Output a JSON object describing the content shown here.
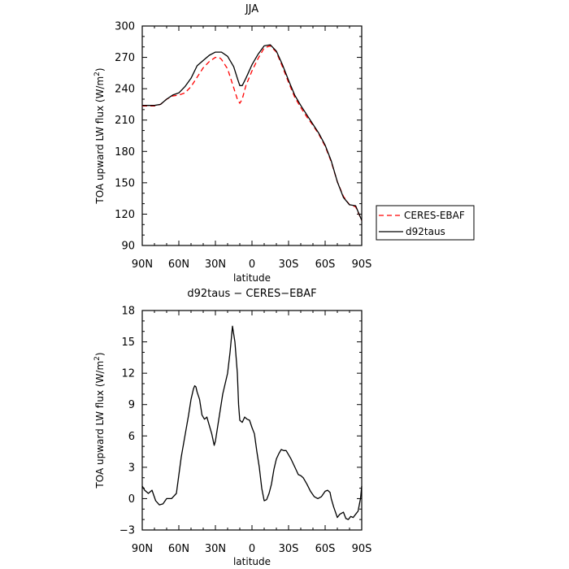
{
  "chart_data": [
    {
      "type": "line",
      "title": "JJA",
      "xlabel": "latitude",
      "ylabel": "TOA upward LW flux (W/m²)",
      "ylim": [
        90,
        300
      ],
      "xlim": [
        90,
        -90
      ],
      "x_ticks": [
        90,
        60,
        30,
        0,
        -30,
        -60,
        -90
      ],
      "x_tick_labels": [
        "90N",
        "60N",
        "30N",
        "0",
        "30S",
        "60S",
        "90S"
      ],
      "y_ticks": [
        90,
        120,
        150,
        180,
        210,
        240,
        270,
        300
      ],
      "y_tick_labels": [
        "90",
        "120",
        "150",
        "180",
        "210",
        "240",
        "270",
        "300"
      ],
      "legend_position": "right",
      "series": [
        {
          "name": "CERES-EBAF",
          "color": "#ff0000",
          "dash": "dashed",
          "x": [
            90,
            85,
            80,
            75,
            70,
            65,
            60,
            55,
            50,
            45,
            40,
            35,
            30,
            27,
            25,
            20,
            15,
            12,
            10,
            8,
            5,
            0,
            -5,
            -10,
            -15,
            -20,
            -25,
            -30,
            -35,
            -40,
            -45,
            -50,
            -55,
            -60,
            -65,
            -70,
            -75,
            -80,
            -85,
            -90
          ],
          "y": [
            223.5,
            223.5,
            223.5,
            225,
            230,
            233,
            234,
            236,
            242,
            251,
            260,
            266,
            270,
            270,
            268,
            259,
            241,
            230,
            226,
            230,
            243,
            257,
            269,
            279,
            281,
            275,
            261,
            246,
            232,
            222,
            213,
            205,
            196,
            185,
            170,
            151,
            137,
            129,
            127,
            114
          ]
        },
        {
          "name": "d92taus",
          "color": "#000000",
          "dash": "solid",
          "x": [
            90,
            85,
            80,
            75,
            70,
            65,
            60,
            55,
            50,
            45,
            40,
            35,
            30,
            25,
            20,
            15,
            12,
            10,
            8,
            5,
            0,
            -5,
            -10,
            -15,
            -20,
            -25,
            -30,
            -35,
            -40,
            -45,
            -50,
            -55,
            -60,
            -65,
            -70,
            -75,
            -80,
            -85,
            -90
          ],
          "y": [
            224,
            224,
            224,
            225,
            230,
            234,
            236,
            242,
            250,
            262,
            267,
            272,
            275,
            275,
            271,
            261,
            250,
            243,
            243,
            250,
            263,
            273,
            281,
            282,
            276,
            263,
            248,
            234,
            224,
            215,
            206,
            197,
            186,
            171,
            151,
            136,
            129,
            128,
            114
          ]
        }
      ]
    },
    {
      "type": "line",
      "title": "d92taus − CERES−EBAF",
      "xlabel": "latitude",
      "ylabel": "TOA upward LW flux (W/m²)",
      "ylim": [
        -3,
        18
      ],
      "xlim": [
        90,
        -90
      ],
      "x_ticks": [
        90,
        60,
        30,
        0,
        -30,
        -60,
        -90
      ],
      "x_tick_labels": [
        "90N",
        "60N",
        "30N",
        "0",
        "30S",
        "60S",
        "90S"
      ],
      "y_ticks": [
        -3,
        0,
        3,
        6,
        9,
        12,
        15,
        18
      ],
      "y_tick_labels": [
        "−3",
        "0",
        "3",
        "6",
        "9",
        "12",
        "15",
        "18"
      ],
      "series": [
        {
          "color": "#000000",
          "dash": "solid",
          "x": [
            90,
            88,
            85,
            82,
            79,
            76,
            73,
            70,
            66,
            62,
            58,
            55,
            52,
            50,
            48,
            47,
            46,
            45,
            43,
            41,
            39,
            37,
            35,
            33,
            31,
            30,
            28,
            26,
            24,
            22,
            20,
            18,
            16,
            14,
            12,
            11,
            10,
            8,
            6,
            4,
            2,
            0,
            -2,
            -4,
            -6,
            -8,
            -10,
            -12,
            -14,
            -16,
            -18,
            -20,
            -22,
            -24,
            -26,
            -28,
            -30,
            -32,
            -34,
            -36,
            -38,
            -40,
            -42,
            -45,
            -48,
            -51,
            -54,
            -57,
            -60,
            -62,
            -64,
            -65,
            -67,
            -70,
            -72,
            -75,
            -77,
            -79,
            -81,
            -83,
            -85,
            -87,
            -89,
            -90
          ],
          "y": [
            1.2,
            0.8,
            0.5,
            0.8,
            -0.2,
            -0.6,
            -0.5,
            0.0,
            0.0,
            0.5,
            4.0,
            6.0,
            8.0,
            9.5,
            10.5,
            10.8,
            10.7,
            10.2,
            9.5,
            8.0,
            7.6,
            7.8,
            7.0,
            6.2,
            5.1,
            5.5,
            7.0,
            8.5,
            10.0,
            11.0,
            12.0,
            14.0,
            16.5,
            15.0,
            12.0,
            9.0,
            7.5,
            7.3,
            7.8,
            7.6,
            7.5,
            6.8,
            6.2,
            4.5,
            3.0,
            1.0,
            -0.2,
            -0.1,
            0.5,
            1.4,
            2.8,
            3.8,
            4.3,
            4.7,
            4.6,
            4.6,
            4.2,
            3.8,
            3.3,
            2.8,
            2.3,
            2.2,
            2.0,
            1.4,
            0.7,
            0.2,
            0.0,
            0.2,
            0.7,
            0.8,
            0.6,
            0.0,
            -0.8,
            -1.8,
            -1.5,
            -1.3,
            -1.9,
            -2.0,
            -1.7,
            -1.8,
            -1.5,
            -1.2,
            0.0,
            1.2
          ]
        }
      ]
    }
  ]
}
